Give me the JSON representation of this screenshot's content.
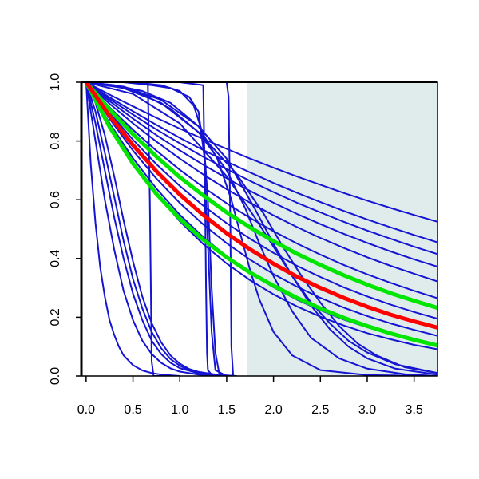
{
  "chart_data": {
    "type": "line",
    "title": "",
    "xlabel": "",
    "ylabel": "",
    "xlim": [
      -0.05,
      3.75
    ],
    "ylim": [
      0.0,
      1.0
    ],
    "grid": false,
    "x_ticks": [
      "0.0",
      "0.5",
      "1.0",
      "1.5",
      "2.0",
      "2.5",
      "3.0",
      "3.5"
    ],
    "y_ticks": [
      "0.0",
      "0.2",
      "0.4",
      "0.6",
      "0.8",
      "1.0"
    ],
    "shaded_region": {
      "x_start": 1.72,
      "x_end": 3.75,
      "color": "#e0ecec"
    },
    "colors": {
      "blue": "#1414d2",
      "red": "#ff0000",
      "green": "#00e600",
      "axis": "#000000"
    },
    "series": [
      {
        "color": "red",
        "width": 5,
        "x": [
          0,
          0.25,
          0.5,
          0.75,
          1.0,
          1.25,
          1.5,
          1.75,
          2.0,
          2.25,
          2.5,
          2.75,
          3.0,
          3.25,
          3.5,
          3.75
        ],
        "values": [
          1.0,
          0.886,
          0.786,
          0.697,
          0.618,
          0.548,
          0.486,
          0.431,
          0.382,
          0.338,
          0.3,
          0.266,
          0.236,
          0.209,
          0.186,
          0.165
        ]
      },
      {
        "color": "green",
        "width": 5,
        "x": [
          0,
          0.25,
          0.5,
          0.75,
          1.0,
          1.25,
          1.5,
          1.75,
          2.0,
          2.25,
          2.5,
          2.75,
          3.0,
          3.25,
          3.5,
          3.75
        ],
        "values": [
          1.0,
          0.907,
          0.823,
          0.747,
          0.677,
          0.615,
          0.557,
          0.506,
          0.459,
          0.416,
          0.378,
          0.343,
          0.311,
          0.282,
          0.256,
          0.232
        ]
      },
      {
        "color": "green",
        "width": 5,
        "x": [
          0,
          0.25,
          0.5,
          0.75,
          1.0,
          1.25,
          1.5,
          1.75,
          2.0,
          2.25,
          2.5,
          2.75,
          3.0,
          3.25,
          3.5,
          3.75
        ],
        "values": [
          1.0,
          0.848,
          0.723,
          0.62,
          0.535,
          0.464,
          0.404,
          0.352,
          0.307,
          0.266,
          0.23,
          0.198,
          0.17,
          0.145,
          0.123,
          0.104
        ]
      },
      {
        "color": "blue",
        "width": 2,
        "x": [
          0,
          0.25,
          0.5,
          0.75,
          1.0,
          1.25,
          1.5,
          1.75,
          2.0,
          2.25,
          2.5,
          2.75,
          3.0,
          3.25,
          3.5,
          3.75
        ],
        "values": [
          1.0,
          0.927,
          0.86,
          0.798,
          0.74,
          0.686,
          0.636,
          0.59,
          0.547,
          0.507,
          0.47,
          0.436,
          0.404,
          0.375,
          0.348,
          0.322
        ]
      },
      {
        "color": "blue",
        "width": 2,
        "x": [
          0,
          0.25,
          0.5,
          0.75,
          1.0,
          1.25,
          1.5,
          1.75,
          2.0,
          2.25,
          2.5,
          2.75,
          3.0,
          3.25,
          3.5,
          3.75
        ],
        "values": [
          1.0,
          0.943,
          0.89,
          0.839,
          0.792,
          0.746,
          0.704,
          0.664,
          0.626,
          0.59,
          0.557,
          0.525,
          0.495,
          0.467,
          0.44,
          0.415
        ]
      },
      {
        "color": "blue",
        "width": 2,
        "x": [
          0,
          0.25,
          0.5,
          0.75,
          1.0,
          1.25,
          1.5,
          1.75,
          2.0,
          2.25,
          2.5,
          2.75,
          3.0,
          3.25,
          3.5,
          3.75
        ],
        "values": [
          1.0,
          0.949,
          0.901,
          0.855,
          0.811,
          0.769,
          0.73,
          0.693,
          0.657,
          0.624,
          0.592,
          0.562,
          0.533,
          0.506,
          0.48,
          0.455
        ]
      },
      {
        "color": "blue",
        "width": 2,
        "x": [
          0,
          0.25,
          0.5,
          0.75,
          1.0,
          1.25,
          1.5,
          1.75,
          2.0,
          2.25,
          2.5,
          2.75,
          3.0,
          3.25,
          3.5,
          3.75
        ],
        "values": [
          1.0,
          0.958,
          0.918,
          0.879,
          0.842,
          0.807,
          0.773,
          0.74,
          0.709,
          0.679,
          0.651,
          0.623,
          0.597,
          0.572,
          0.548,
          0.525
        ]
      },
      {
        "color": "blue",
        "width": 2,
        "x": [
          0,
          0.25,
          0.5,
          0.75,
          1.0,
          1.25,
          1.5,
          1.75,
          2.0,
          2.25,
          2.5,
          2.75,
          3.0,
          3.25,
          3.5,
          3.75
        ],
        "values": [
          1.0,
          0.936,
          0.876,
          0.82,
          0.768,
          0.719,
          0.673,
          0.63,
          0.59,
          0.552,
          0.517,
          0.484,
          0.453,
          0.424,
          0.397,
          0.372
        ]
      },
      {
        "color": "blue",
        "width": 2,
        "x": [
          0,
          0.25,
          0.5,
          0.75,
          1.0,
          1.25,
          1.5,
          1.75,
          2.0,
          2.25,
          2.5,
          2.75,
          3.0,
          3.25,
          3.5,
          3.75
        ],
        "values": [
          1.0,
          0.915,
          0.838,
          0.767,
          0.702,
          0.643,
          0.588,
          0.538,
          0.493,
          0.451,
          0.413,
          0.378,
          0.346,
          0.317,
          0.29,
          0.265
        ]
      },
      {
        "color": "blue",
        "width": 2,
        "x": [
          0,
          0.25,
          0.5,
          0.75,
          1.0,
          1.25,
          1.5,
          1.75,
          2.0,
          2.25,
          2.5,
          2.75,
          3.0,
          3.25,
          3.5,
          3.75
        ],
        "values": [
          1.0,
          0.897,
          0.804,
          0.721,
          0.647,
          0.58,
          0.52,
          0.467,
          0.419,
          0.375,
          0.337,
          0.302,
          0.271,
          0.243,
          0.218,
          0.195
        ]
      },
      {
        "color": "blue",
        "width": 2,
        "x": [
          0,
          0.25,
          0.5,
          0.75,
          1.0,
          1.25,
          1.5,
          1.75,
          2.0,
          2.25,
          2.5,
          2.75,
          3.0,
          3.25,
          3.5,
          3.75
        ],
        "values": [
          1.0,
          0.876,
          0.767,
          0.672,
          0.589,
          0.516,
          0.452,
          0.396,
          0.347,
          0.304,
          0.266,
          0.233,
          0.204,
          0.179,
          0.157,
          0.137
        ]
      },
      {
        "color": "blue",
        "width": 2,
        "x": [
          0,
          0.25,
          0.5,
          0.75,
          1.0,
          1.25,
          1.5,
          1.75,
          2.0,
          2.25,
          2.5,
          2.75,
          3.0,
          3.25,
          3.5,
          3.75
        ],
        "values": [
          1.0,
          0.861,
          0.741,
          0.638,
          0.549,
          0.473,
          0.407,
          0.35,
          0.302,
          0.26,
          0.224,
          0.192,
          0.166,
          0.143,
          0.123,
          0.106
        ]
      },
      {
        "color": "blue",
        "width": 2,
        "x": [
          0,
          0.25,
          0.5,
          0.75,
          1.0,
          1.25,
          1.5,
          1.75,
          2.0,
          2.25,
          2.5,
          2.75,
          3.0,
          3.25,
          3.5,
          3.75
        ],
        "values": [
          1.0,
          0.852,
          0.726,
          0.619,
          0.527,
          0.449,
          0.383,
          0.326,
          0.278,
          0.237,
          0.202,
          0.172,
          0.146,
          0.125,
          0.106,
          0.091
        ]
      },
      {
        "color": "blue",
        "width": 2,
        "x": [
          0,
          0.05,
          0.1,
          0.15,
          0.2,
          0.25,
          0.3,
          0.35,
          0.4,
          0.5,
          0.6,
          0.7,
          0.8,
          1.0
        ],
        "values": [
          1.0,
          0.72,
          0.52,
          0.37,
          0.27,
          0.19,
          0.14,
          0.1,
          0.07,
          0.037,
          0.019,
          0.01,
          0.005,
          0.0
        ]
      },
      {
        "color": "blue",
        "width": 2,
        "x": [
          0,
          0.1,
          0.2,
          0.3,
          0.4,
          0.5,
          0.6,
          0.7,
          0.8,
          0.9,
          1.0,
          1.2,
          1.4
        ],
        "values": [
          1.0,
          0.8,
          0.6,
          0.43,
          0.29,
          0.19,
          0.12,
          0.075,
          0.045,
          0.026,
          0.015,
          0.005,
          0.0
        ]
      },
      {
        "color": "blue",
        "width": 2,
        "x": [
          0,
          0.1,
          0.2,
          0.3,
          0.4,
          0.5,
          0.6,
          0.7,
          0.8,
          0.9,
          1.0,
          1.1,
          1.3,
          1.5
        ],
        "values": [
          1.0,
          0.9,
          0.76,
          0.61,
          0.46,
          0.33,
          0.23,
          0.15,
          0.095,
          0.058,
          0.035,
          0.02,
          0.006,
          0.0
        ]
      },
      {
        "color": "blue",
        "width": 2,
        "x": [
          0,
          0.1,
          0.2,
          0.3,
          0.4,
          0.5,
          0.6,
          0.7,
          0.8,
          0.9,
          1.0,
          1.1,
          1.2,
          1.4,
          1.6
        ],
        "values": [
          1.0,
          0.93,
          0.82,
          0.68,
          0.53,
          0.39,
          0.27,
          0.18,
          0.115,
          0.07,
          0.042,
          0.024,
          0.014,
          0.004,
          0.0
        ]
      },
      {
        "color": "blue",
        "width": 2,
        "x": [
          0,
          0.1,
          0.2,
          0.3,
          0.4,
          0.5,
          0.6,
          0.7,
          0.8,
          0.9,
          1.0,
          1.2,
          1.4
        ],
        "values": [
          1.0,
          0.86,
          0.7,
          0.54,
          0.4,
          0.28,
          0.19,
          0.12,
          0.075,
          0.045,
          0.027,
          0.009,
          0.0
        ]
      },
      {
        "color": "blue",
        "width": 2,
        "x": [
          0,
          0.6,
          0.66,
          0.68,
          0.7,
          0.72,
          0.8,
          1.0
        ],
        "values": [
          1.0,
          1.0,
          0.99,
          0.6,
          0.05,
          0.0,
          0.0,
          0.0
        ]
      },
      {
        "color": "blue",
        "width": 2,
        "x": [
          0,
          0.4,
          0.7,
          0.9,
          1.1,
          1.2,
          1.26,
          1.3,
          1.34,
          1.38,
          1.5
        ],
        "values": [
          1.0,
          1.0,
          0.99,
          0.98,
          0.95,
          0.9,
          0.75,
          0.45,
          0.15,
          0.02,
          0.0
        ]
      },
      {
        "color": "blue",
        "width": 2,
        "x": [
          0,
          0.5,
          0.8,
          1.0,
          1.15,
          1.25,
          1.3,
          1.34,
          1.38,
          1.42,
          1.5
        ],
        "values": [
          1.0,
          1.0,
          0.99,
          0.97,
          0.92,
          0.82,
          0.6,
          0.3,
          0.08,
          0.01,
          0.0
        ]
      },
      {
        "color": "blue",
        "width": 2,
        "x": [
          0,
          1.0,
          1.25,
          1.27,
          1.28,
          1.29,
          1.3,
          1.35,
          1.45
        ],
        "values": [
          1.0,
          1.0,
          0.99,
          0.6,
          0.3,
          0.08,
          0.02,
          0.0,
          0.0
        ]
      },
      {
        "color": "blue",
        "width": 2,
        "x": [
          0,
          1.4,
          1.5,
          1.52,
          1.54,
          1.55,
          1.57,
          1.6
        ],
        "values": [
          1.0,
          1.0,
          1.0,
          0.95,
          0.5,
          0.1,
          0.0,
          0.0
        ]
      },
      {
        "color": "blue",
        "width": 2,
        "x": [
          0,
          0.3,
          0.6,
          0.9,
          1.2,
          1.4,
          1.55,
          1.65,
          1.75,
          1.85,
          2.0,
          2.2,
          2.5,
          3.0,
          3.75
        ],
        "values": [
          1.0,
          0.99,
          0.97,
          0.93,
          0.85,
          0.74,
          0.6,
          0.48,
          0.36,
          0.26,
          0.15,
          0.07,
          0.02,
          0.003,
          0.0
        ]
      },
      {
        "color": "blue",
        "width": 2,
        "x": [
          0,
          0.3,
          0.6,
          0.9,
          1.2,
          1.5,
          1.7,
          1.85,
          2.0,
          2.2,
          2.4,
          2.7,
          3.0,
          3.4,
          3.75
        ],
        "values": [
          1.0,
          0.99,
          0.96,
          0.91,
          0.83,
          0.7,
          0.57,
          0.45,
          0.34,
          0.22,
          0.13,
          0.06,
          0.025,
          0.006,
          0.0
        ]
      },
      {
        "color": "blue",
        "width": 2,
        "x": [
          0,
          0.4,
          0.8,
          1.2,
          1.5,
          1.8,
          2.0,
          2.2,
          2.4,
          2.6,
          2.8,
          3.0,
          3.3,
          3.75
        ],
        "values": [
          1.0,
          0.985,
          0.94,
          0.85,
          0.74,
          0.57,
          0.45,
          0.34,
          0.24,
          0.16,
          0.1,
          0.06,
          0.025,
          0.005
        ]
      },
      {
        "color": "blue",
        "width": 2,
        "x": [
          0,
          0.4,
          0.8,
          1.2,
          1.6,
          1.9,
          2.1,
          2.3,
          2.5,
          2.7,
          2.9,
          3.1,
          3.4,
          3.75
        ],
        "values": [
          1.0,
          0.98,
          0.93,
          0.83,
          0.69,
          0.55,
          0.44,
          0.34,
          0.25,
          0.17,
          0.11,
          0.07,
          0.03,
          0.01
        ]
      },
      {
        "color": "blue",
        "width": 2,
        "x": [
          0,
          0.5,
          1.0,
          1.5,
          1.8,
          2.0,
          2.2,
          2.4,
          2.6,
          2.8,
          3.0,
          3.3,
          3.75
        ],
        "values": [
          1.0,
          0.96,
          0.86,
          0.68,
          0.54,
          0.44,
          0.34,
          0.25,
          0.18,
          0.12,
          0.08,
          0.04,
          0.01
        ]
      }
    ]
  }
}
